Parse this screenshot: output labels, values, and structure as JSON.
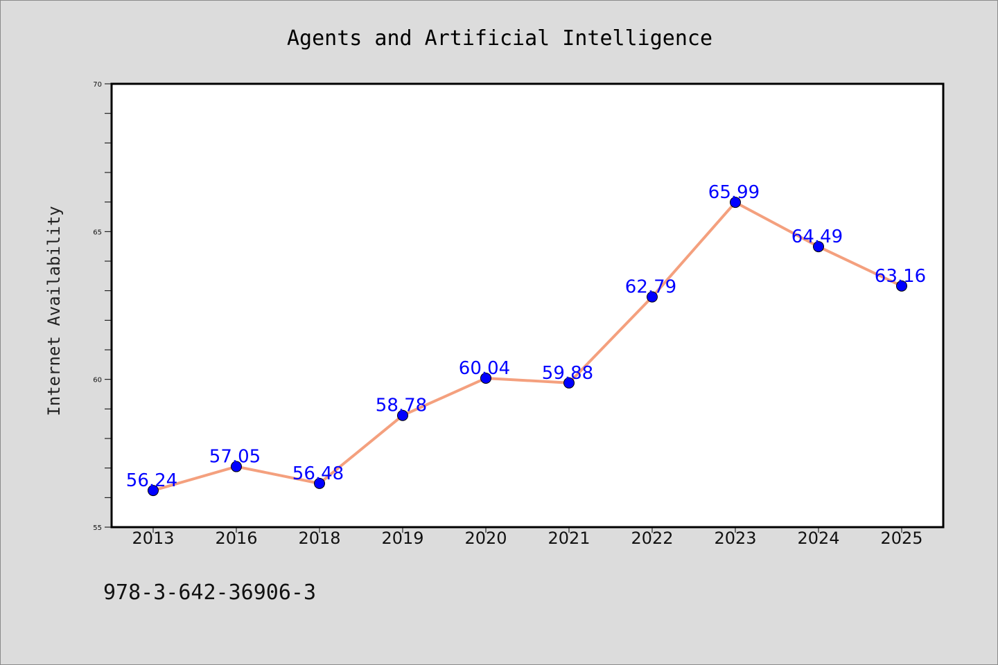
{
  "chart_data": {
    "type": "line",
    "title": "Agents and Artificial Intelligence",
    "xlabel": "",
    "ylabel": "Internet Availability",
    "categories": [
      "2013",
      "2016",
      "2018",
      "2019",
      "2020",
      "2021",
      "2022",
      "2023",
      "2024",
      "2025"
    ],
    "values": [
      56.24,
      57.05,
      56.48,
      58.78,
      60.04,
      59.88,
      62.79,
      65.99,
      64.49,
      63.16
    ],
    "data_labels": [
      "56.24",
      "57.05",
      "56.48",
      "58.78",
      "60.04",
      "59.88",
      "62.79",
      "65.99",
      "64.49",
      "63.16"
    ],
    "ylim": [
      55,
      70
    ],
    "yticks": [
      55,
      60,
      65,
      70
    ],
    "ytick_labels": [
      "55",
      "60",
      "65",
      "70"
    ],
    "grid": false,
    "line_color": "#f4a07e",
    "marker_color": "#0000ff",
    "label_color": "#0000ff"
  },
  "footnote": "978-3-642-36906-3"
}
